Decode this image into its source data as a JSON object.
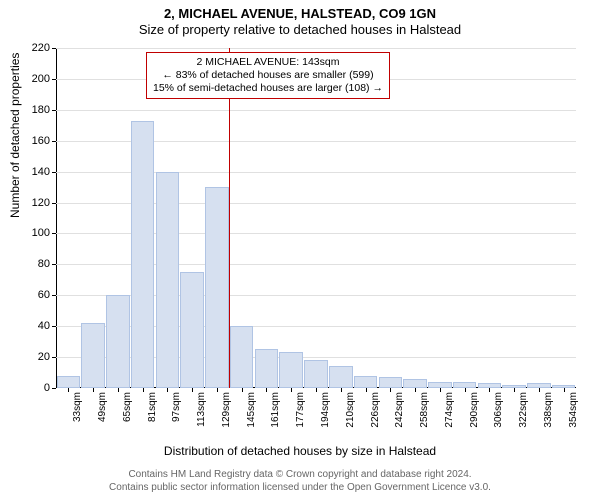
{
  "title_main": "2, MICHAEL AVENUE, HALSTEAD, CO9 1GN",
  "title_sub": "Size of property relative to detached houses in Halstead",
  "y_axis_label": "Number of detached properties",
  "x_axis_label": "Distribution of detached houses by size in Halstead",
  "credits_line1": "Contains HM Land Registry data © Crown copyright and database right 2024.",
  "credits_line2": "Contains public sector information licensed under the Open Government Licence v3.0.",
  "chart": {
    "type": "bar",
    "ylim": [
      0,
      220
    ],
    "ytick_step": 20,
    "yticks": [
      0,
      20,
      40,
      60,
      80,
      100,
      120,
      140,
      160,
      180,
      200,
      220
    ],
    "categories": [
      "33sqm",
      "49sqm",
      "65sqm",
      "81sqm",
      "97sqm",
      "113sqm",
      "129sqm",
      "145sqm",
      "161sqm",
      "177sqm",
      "194sqm",
      "210sqm",
      "226sqm",
      "242sqm",
      "258sqm",
      "274sqm",
      "290sqm",
      "306sqm",
      "322sqm",
      "338sqm",
      "354sqm"
    ],
    "values_before": [
      8,
      42,
      60,
      173,
      140,
      75,
      130
    ],
    "values_after": [
      40,
      25,
      23,
      18,
      14,
      8,
      7,
      6,
      4,
      4,
      3,
      2,
      3,
      2
    ],
    "vline_index": 7,
    "bar_fill_before": "#d6e0f0",
    "bar_border_before": "#b0c4e4",
    "bar_fill_after": "#d6e0f0",
    "bar_border_after": "#b0c4e4",
    "vline_color": "#c00000",
    "axis_color": "#000000",
    "grid_color": "#e0e0e0",
    "background_color": "#ffffff",
    "bar_width_ratio": 0.95,
    "label_fontsize": 12,
    "tick_fontsize": 11
  },
  "info_box": {
    "line1": "2 MICHAEL AVENUE: 143sqm",
    "line2": "← 83% of detached houses are smaller (599)",
    "line3": "15% of semi-detached houses are larger (108) →",
    "border_color": "#c00000",
    "background_color": "#ffffff",
    "fontsize": 10.5
  }
}
